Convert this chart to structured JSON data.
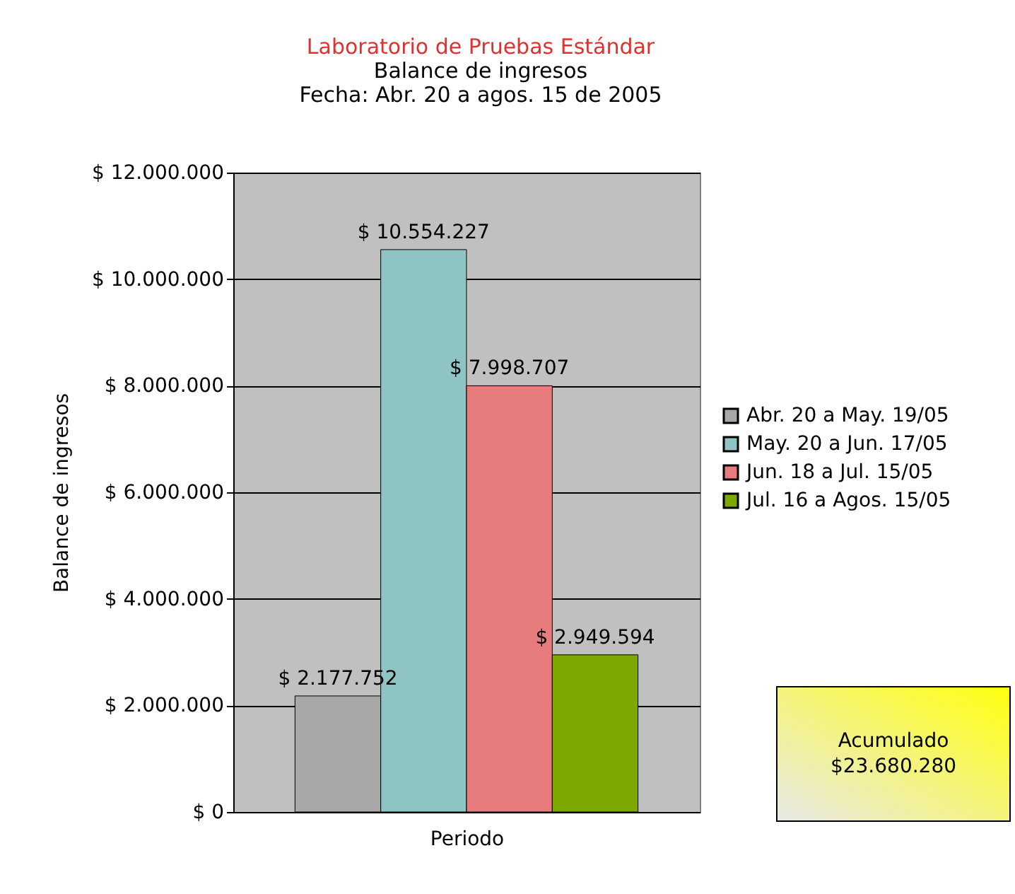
{
  "chart_data": {
    "type": "bar",
    "title": "Laboratorio de Pruebas Estándar",
    "subtitle": "Balance de ingresos\nFecha: Abr. 20 a agos. 15 de 2005",
    "xlabel": "Periodo",
    "ylabel": "Balance de ingresos",
    "categories": [
      null
    ],
    "series": [
      {
        "name": "Abr. 20 a May. 19/05",
        "color": "#a8a8a8",
        "values": [
          2177752
        ],
        "value_labels": [
          "$ 2.177.752"
        ]
      },
      {
        "name": "May. 20 a Jun. 17/05",
        "color": "#8ec4c4",
        "values": [
          10554227
        ],
        "value_labels": [
          "$ 10.554.227"
        ]
      },
      {
        "name": "Jun. 18 a Jul. 15/05",
        "color": "#e87c7c",
        "values": [
          7998707
        ],
        "value_labels": [
          "$ 7.998.707"
        ]
      },
      {
        "name": "Jul. 16 a Agos. 15/05",
        "color": "#7ca800",
        "values": [
          2949594
        ],
        "value_labels": [
          "$ 2.949.594"
        ]
      }
    ],
    "ylim": [
      0,
      12000000
    ],
    "yticks": [
      {
        "value": 0,
        "label": "$ 0"
      },
      {
        "value": 2000000,
        "label": "$ 2.000.000"
      },
      {
        "value": 4000000,
        "label": "$ 4.000.000"
      },
      {
        "value": 6000000,
        "label": "$ 6.000.000"
      },
      {
        "value": 8000000,
        "label": "$ 8.000.000"
      },
      {
        "value": 10000000,
        "label": "$ 10.000.000"
      },
      {
        "value": 12000000,
        "label": "$ 12.000.000"
      }
    ],
    "grid": "y",
    "legend": "right",
    "annotations": [
      "Acumulado\n$23.680.280"
    ]
  }
}
